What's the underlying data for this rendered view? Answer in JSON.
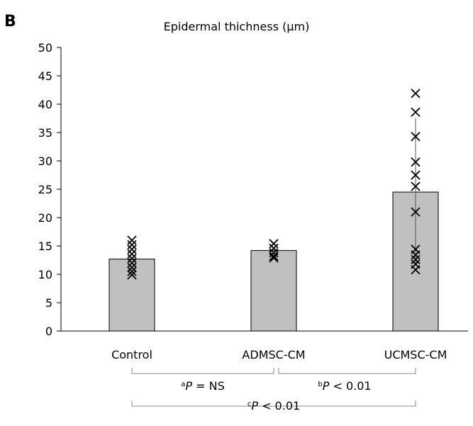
{
  "panel_label": "B",
  "chart_data": {
    "type": "bar",
    "title": "Epidermal thichness (μm)",
    "xlabel": "",
    "ylabel": "",
    "ylim": [
      0,
      50
    ],
    "yticks": [
      0,
      5,
      10,
      15,
      20,
      25,
      30,
      35,
      40,
      45,
      50
    ],
    "grid": false,
    "categories": [
      "Control",
      "ADMSC-CM",
      "UCMSC-CM"
    ],
    "values": [
      12.7,
      14.2,
      24.5
    ],
    "error_upper": [
      null,
      null,
      37.5
    ],
    "error_lower": [
      null,
      null,
      11.5
    ],
    "points": [
      [
        16.0,
        15.2,
        14.4,
        13.6,
        12.8,
        12.0,
        11.2,
        10.5,
        9.9
      ],
      [
        15.4,
        14.6,
        13.8,
        13.2,
        12.9
      ],
      [
        41.9,
        38.6,
        34.3,
        29.8,
        27.5,
        25.5,
        21.0,
        14.4,
        13.4,
        12.6,
        11.8,
        10.8
      ]
    ],
    "bar_color": "#c0c0c0",
    "comparisons": [
      {
        "from": 0,
        "to": 1,
        "sup": "a",
        "p": "P",
        "text": " = NS"
      },
      {
        "from": 1,
        "to": 2,
        "sup": "b",
        "p": "P",
        "text": " < 0.01"
      },
      {
        "from": 0,
        "to": 2,
        "sup": "c",
        "p": "P",
        "text": " < 0.01"
      }
    ]
  }
}
